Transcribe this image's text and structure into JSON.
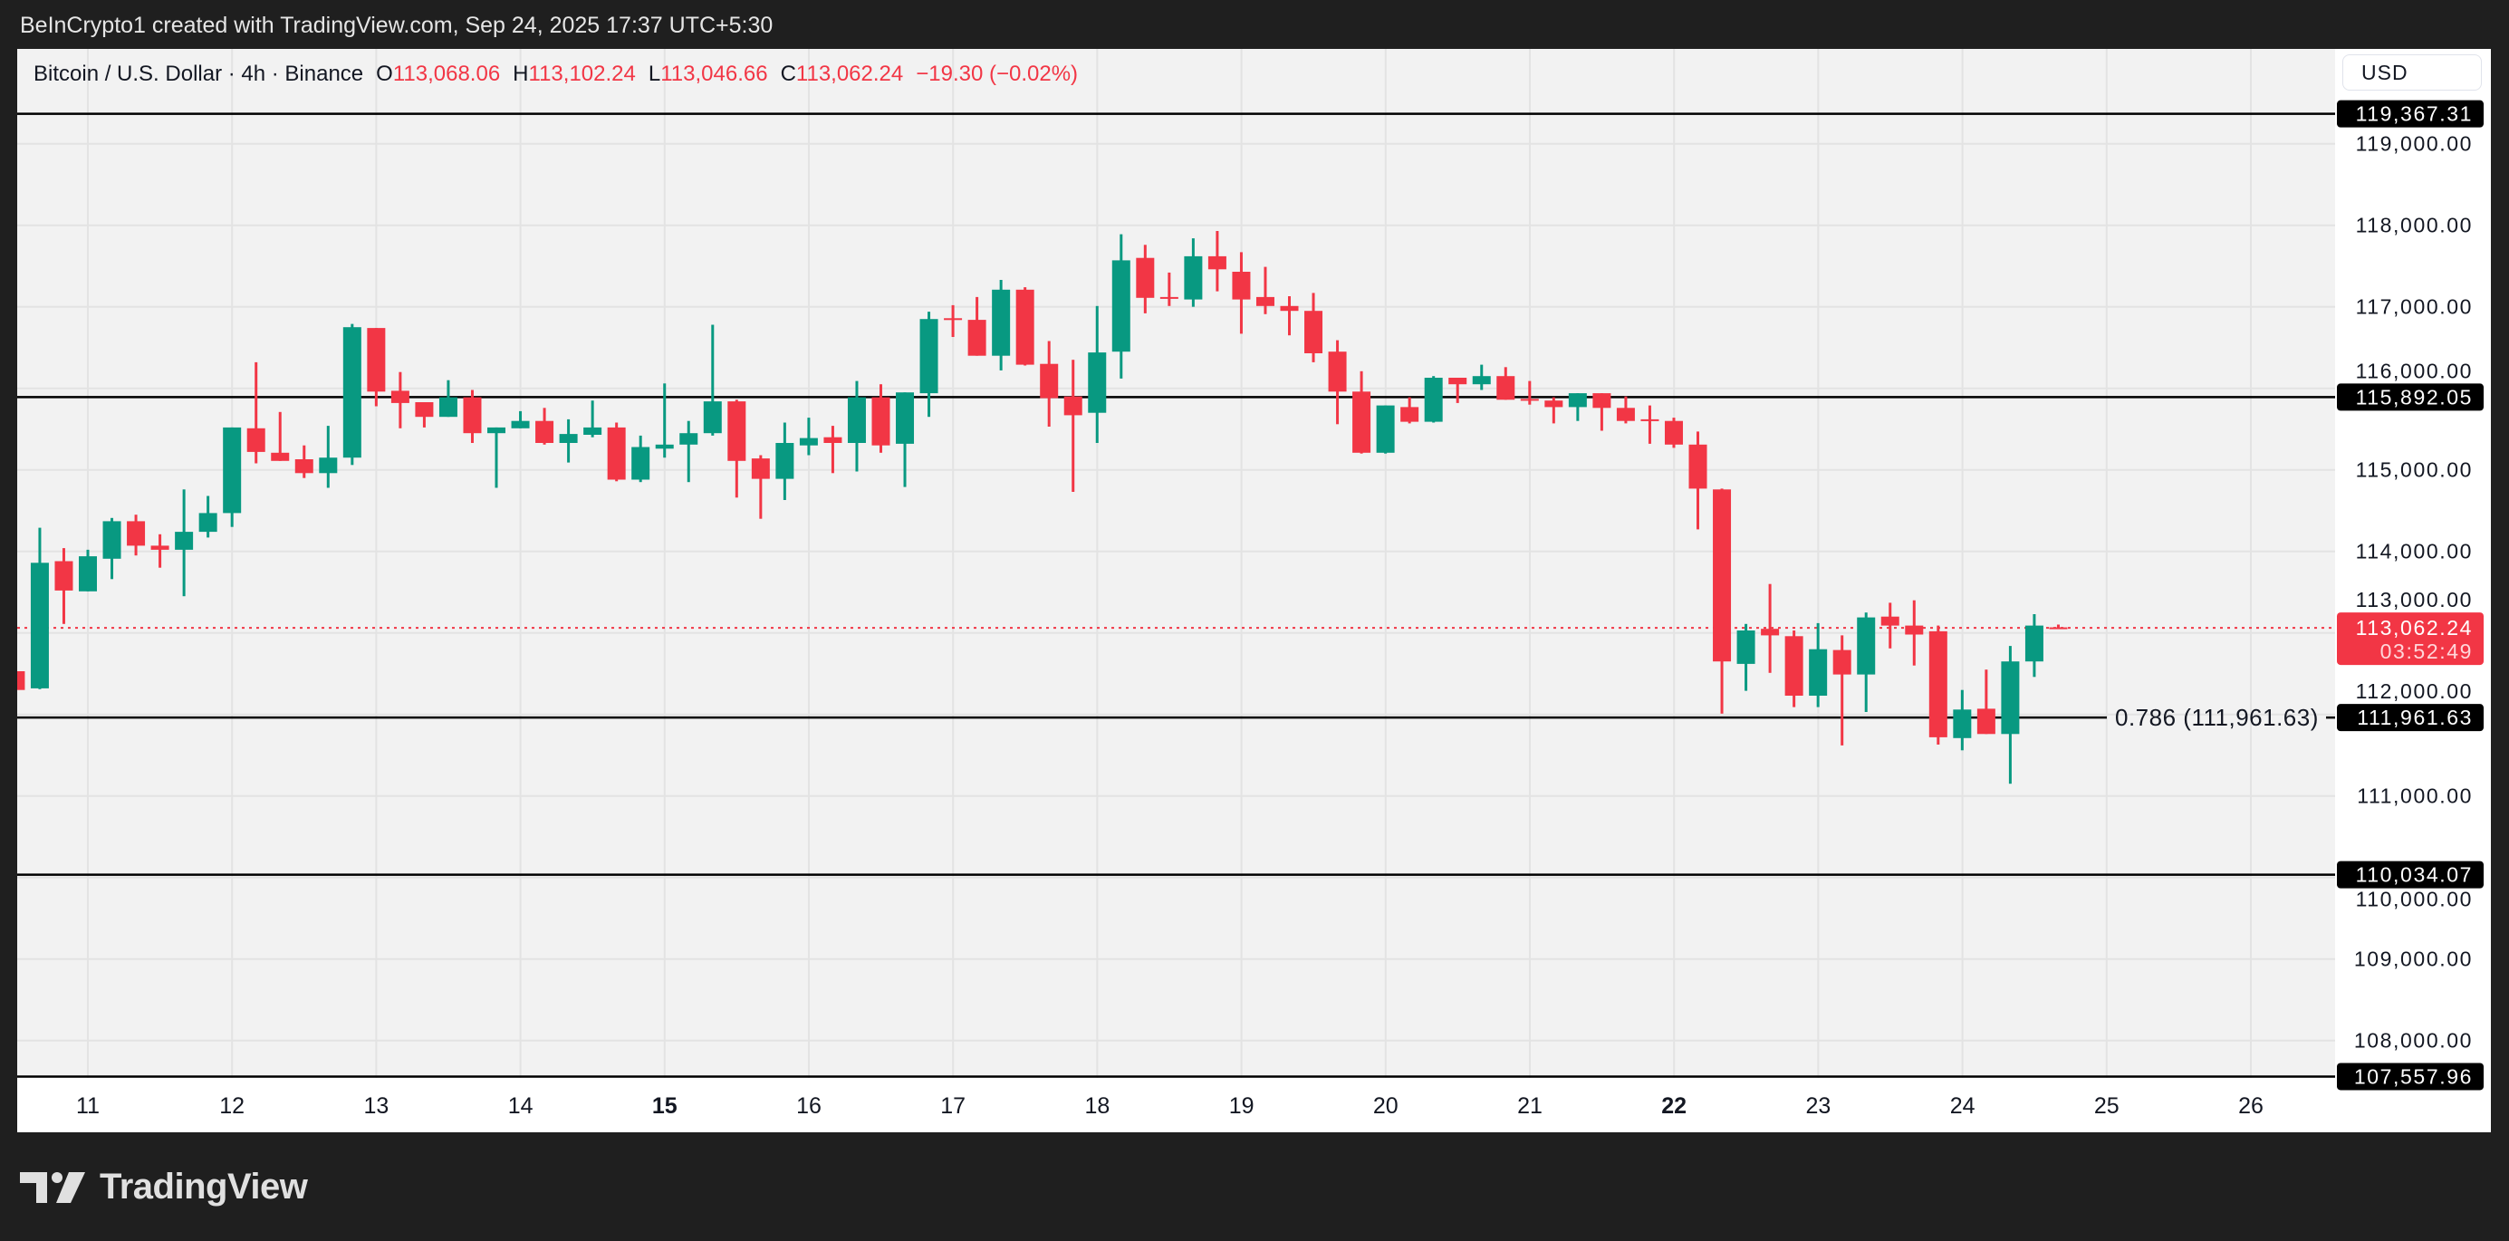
{
  "credit": "BeInCrypto1 created with TradingView.com, Sep 24, 2025 17:37 UTC+5:30",
  "legend": {
    "symbol": "Bitcoin / U.S. Dollar · 4h · Binance",
    "o_label": "O",
    "o_value": "113,068.06",
    "h_label": "H",
    "h_value": "113,102.24",
    "l_label": "L",
    "l_value": "113,046.66",
    "c_label": "C",
    "c_value": "113,062.24",
    "change": "−19.30 (−0.02%)"
  },
  "currency_button": "USD",
  "logo_text": "TradingView",
  "colors": {
    "up": "#089981",
    "down": "#f23645",
    "background": "#f2f2f2",
    "frame": "#1f1f1f",
    "level_line": "#000000"
  },
  "chart_data": {
    "type": "candlestick",
    "interval": "4h",
    "ylim": [
      107557.96,
      119367.31
    ],
    "grid": true,
    "y_ticks": [
      "108,000.00",
      "109,000.00",
      "110,000.00",
      "111,000.00",
      "112,000.00",
      "113,000.00",
      "114,000.00",
      "115,000.00",
      "116,000.00",
      "117,000.00",
      "118,000.00",
      "119,000.00"
    ],
    "y_tick_values": [
      108000,
      109000,
      110000,
      111000,
      112000,
      113000,
      114000,
      115000,
      116000,
      117000,
      118000,
      119000
    ],
    "x_ticks": [
      {
        "label": "11",
        "day": 11,
        "bold": false
      },
      {
        "label": "12",
        "day": 12,
        "bold": false
      },
      {
        "label": "13",
        "day": 13,
        "bold": false
      },
      {
        "label": "14",
        "day": 14,
        "bold": false
      },
      {
        "label": "15",
        "day": 15,
        "bold": true
      },
      {
        "label": "16",
        "day": 16,
        "bold": false
      },
      {
        "label": "17",
        "day": 17,
        "bold": false
      },
      {
        "label": "18",
        "day": 18,
        "bold": false
      },
      {
        "label": "19",
        "day": 19,
        "bold": false
      },
      {
        "label": "20",
        "day": 20,
        "bold": false
      },
      {
        "label": "21",
        "day": 21,
        "bold": false
      },
      {
        "label": "22",
        "day": 22,
        "bold": true
      },
      {
        "label": "23",
        "day": 23,
        "bold": false
      },
      {
        "label": "24",
        "day": 24,
        "bold": false
      },
      {
        "label": "25",
        "day": 25,
        "bold": false
      },
      {
        "label": "26",
        "day": 26,
        "bold": false
      }
    ],
    "levels": [
      {
        "price": 119367.31,
        "label": "119,367.31"
      },
      {
        "price": 115892.05,
        "label": "115,892.05"
      },
      {
        "price": 111961.63,
        "label": "111,961.63",
        "fib_text": "0.786 (111,961.63)"
      },
      {
        "price": 110034.07,
        "label": "110,034.07"
      },
      {
        "price": 107557.96,
        "label": "107,557.96"
      }
    ],
    "last_price": {
      "price": 113062.24,
      "label": "113,062.24",
      "countdown": "03:52:49"
    },
    "candles_columns": [
      "time",
      "open",
      "high",
      "low",
      "close"
    ],
    "candles": [
      [
        "Sep 10 12:00",
        112530,
        112560,
        112280,
        112300
      ],
      [
        "Sep 10 16:00",
        112320,
        114290,
        112310,
        113860
      ],
      [
        "Sep 10 20:00",
        113880,
        114040,
        113110,
        113520
      ],
      [
        "Sep 11 00:00",
        113510,
        114020,
        113510,
        113940
      ],
      [
        "Sep 11 04:00",
        113910,
        114410,
        113660,
        114370
      ],
      [
        "Sep 11 08:00",
        114370,
        114450,
        113950,
        114070
      ],
      [
        "Sep 11 12:00",
        114070,
        114210,
        113800,
        114020
      ],
      [
        "Sep 11 16:00",
        114020,
        114760,
        113450,
        114240
      ],
      [
        "Sep 11 20:00",
        114240,
        114680,
        114170,
        114470
      ],
      [
        "Sep 12 00:00",
        114470,
        115520,
        114300,
        115520
      ],
      [
        "Sep 12 04:00",
        115510,
        116320,
        115080,
        115220
      ],
      [
        "Sep 12 08:00",
        115210,
        115710,
        115110,
        115110
      ],
      [
        "Sep 12 12:00",
        115130,
        115300,
        114900,
        114960
      ],
      [
        "Sep 12 16:00",
        114960,
        115540,
        114780,
        115150
      ],
      [
        "Sep 12 20:00",
        115150,
        116790,
        115060,
        116750
      ],
      [
        "Sep 13 00:00",
        116740,
        116740,
        115780,
        115960
      ],
      [
        "Sep 13 04:00",
        115970,
        116200,
        115510,
        115820
      ],
      [
        "Sep 13 08:00",
        115830,
        115830,
        115520,
        115650
      ],
      [
        "Sep 13 12:00",
        115650,
        116100,
        115650,
        115890
      ],
      [
        "Sep 13 16:00",
        115890,
        115980,
        115330,
        115450
      ],
      [
        "Sep 13 20:00",
        115450,
        115520,
        114780,
        115520
      ],
      [
        "Sep 14 00:00",
        115510,
        115720,
        115510,
        115600
      ],
      [
        "Sep 14 04:00",
        115600,
        115760,
        115310,
        115330
      ],
      [
        "Sep 14 08:00",
        115330,
        115620,
        115090,
        115440
      ],
      [
        "Sep 14 12:00",
        115430,
        115850,
        115400,
        115520
      ],
      [
        "Sep 14 16:00",
        115520,
        115580,
        114860,
        114880
      ],
      [
        "Sep 14 20:00",
        114880,
        115420,
        114850,
        115280
      ],
      [
        "Sep 15 00:00",
        115260,
        116060,
        115150,
        115310
      ],
      [
        "Sep 15 04:00",
        115310,
        115600,
        114850,
        115450
      ],
      [
        "Sep 15 08:00",
        115450,
        116780,
        115420,
        115840
      ],
      [
        "Sep 15 12:00",
        115840,
        115860,
        114660,
        115110
      ],
      [
        "Sep 15 16:00",
        115140,
        115180,
        114400,
        114890
      ],
      [
        "Sep 15 20:00",
        114890,
        115580,
        114630,
        115330
      ],
      [
        "Sep 16 00:00",
        115300,
        115640,
        115180,
        115390
      ],
      [
        "Sep 16 04:00",
        115400,
        115540,
        114960,
        115330
      ],
      [
        "Sep 16 08:00",
        115330,
        116090,
        114980,
        115890
      ],
      [
        "Sep 16 12:00",
        115890,
        116050,
        115210,
        115300
      ],
      [
        "Sep 16 16:00",
        115320,
        115950,
        114790,
        115950
      ],
      [
        "Sep 16 20:00",
        115940,
        116940,
        115650,
        116850
      ],
      [
        "Sep 17 00:00",
        116860,
        117020,
        116630,
        116840
      ],
      [
        "Sep 17 04:00",
        116840,
        117120,
        116400,
        116400
      ],
      [
        "Sep 17 08:00",
        116400,
        117330,
        116220,
        117210
      ],
      [
        "Sep 17 12:00",
        117210,
        117240,
        116280,
        116290
      ],
      [
        "Sep 17 16:00",
        116300,
        116580,
        115530,
        115880
      ],
      [
        "Sep 17 20:00",
        115900,
        116350,
        114730,
        115670
      ],
      [
        "Sep 18 00:00",
        115700,
        117010,
        115330,
        116440
      ],
      [
        "Sep 18 04:00",
        116450,
        117890,
        116120,
        117570
      ],
      [
        "Sep 18 08:00",
        117600,
        117760,
        116920,
        117110
      ],
      [
        "Sep 18 12:00",
        117120,
        117420,
        117010,
        117100
      ],
      [
        "Sep 18 16:00",
        117090,
        117840,
        117000,
        117620
      ],
      [
        "Sep 18 20:00",
        117620,
        117930,
        117190,
        117460
      ],
      [
        "Sep 19 00:00",
        117430,
        117670,
        116670,
        117090
      ],
      [
        "Sep 19 04:00",
        117120,
        117490,
        116910,
        117010
      ],
      [
        "Sep 19 08:00",
        117010,
        117130,
        116650,
        116950
      ],
      [
        "Sep 19 12:00",
        116950,
        117170,
        116320,
        116430
      ],
      [
        "Sep 19 16:00",
        116450,
        116590,
        115560,
        115960
      ],
      [
        "Sep 19 20:00",
        115960,
        116210,
        115200,
        115210
      ],
      [
        "Sep 20 00:00",
        115210,
        115790,
        115200,
        115790
      ],
      [
        "Sep 20 04:00",
        115770,
        115890,
        115570,
        115590
      ],
      [
        "Sep 20 08:00",
        115590,
        116150,
        115580,
        116130
      ],
      [
        "Sep 20 12:00",
        116130,
        116130,
        115820,
        116050
      ],
      [
        "Sep 20 16:00",
        116050,
        116290,
        115980,
        116150
      ],
      [
        "Sep 20 20:00",
        116150,
        116260,
        115860,
        115860
      ],
      [
        "Sep 21 00:00",
        115870,
        116090,
        115800,
        115860
      ],
      [
        "Sep 21 04:00",
        115850,
        115890,
        115570,
        115770
      ],
      [
        "Sep 21 08:00",
        115770,
        115940,
        115600,
        115940
      ],
      [
        "Sep 21 12:00",
        115940,
        115940,
        115480,
        115760
      ],
      [
        "Sep 21 16:00",
        115760,
        115900,
        115570,
        115600
      ],
      [
        "Sep 21 20:00",
        115620,
        115790,
        115320,
        115600
      ],
      [
        "Sep 22 00:00",
        115600,
        115640,
        115270,
        115310
      ],
      [
        "Sep 22 04:00",
        115310,
        115470,
        114270,
        114770
      ],
      [
        "Sep 22 08:00",
        114760,
        114770,
        112010,
        112650
      ],
      [
        "Sep 22 12:00",
        112620,
        113110,
        112290,
        113030
      ],
      [
        "Sep 22 16:00",
        113050,
        113600,
        112510,
        112970
      ],
      [
        "Sep 22 20:00",
        112960,
        113030,
        112090,
        112230
      ],
      [
        "Sep 23 00:00",
        112230,
        113120,
        112090,
        112800
      ],
      [
        "Sep 23 04:00",
        112790,
        112970,
        111620,
        112490
      ],
      [
        "Sep 23 08:00",
        112490,
        113250,
        112030,
        113190
      ],
      [
        "Sep 23 12:00",
        113200,
        113370,
        112810,
        113090
      ],
      [
        "Sep 23 16:00",
        113090,
        113400,
        112600,
        112980
      ],
      [
        "Sep 23 20:00",
        113020,
        113090,
        111630,
        111720
      ],
      [
        "Sep 24 00:00",
        111710,
        112300,
        111560,
        112060
      ],
      [
        "Sep 24 04:00",
        112070,
        112550,
        111760,
        111760
      ],
      [
        "Sep 24 08:00",
        111760,
        112840,
        111150,
        112650
      ],
      [
        "Sep 24 12:00",
        112650,
        113230,
        112460,
        113090
      ],
      [
        "Sep 24 16:00",
        113068.06,
        113102.24,
        113046.66,
        113062.24
      ]
    ]
  }
}
